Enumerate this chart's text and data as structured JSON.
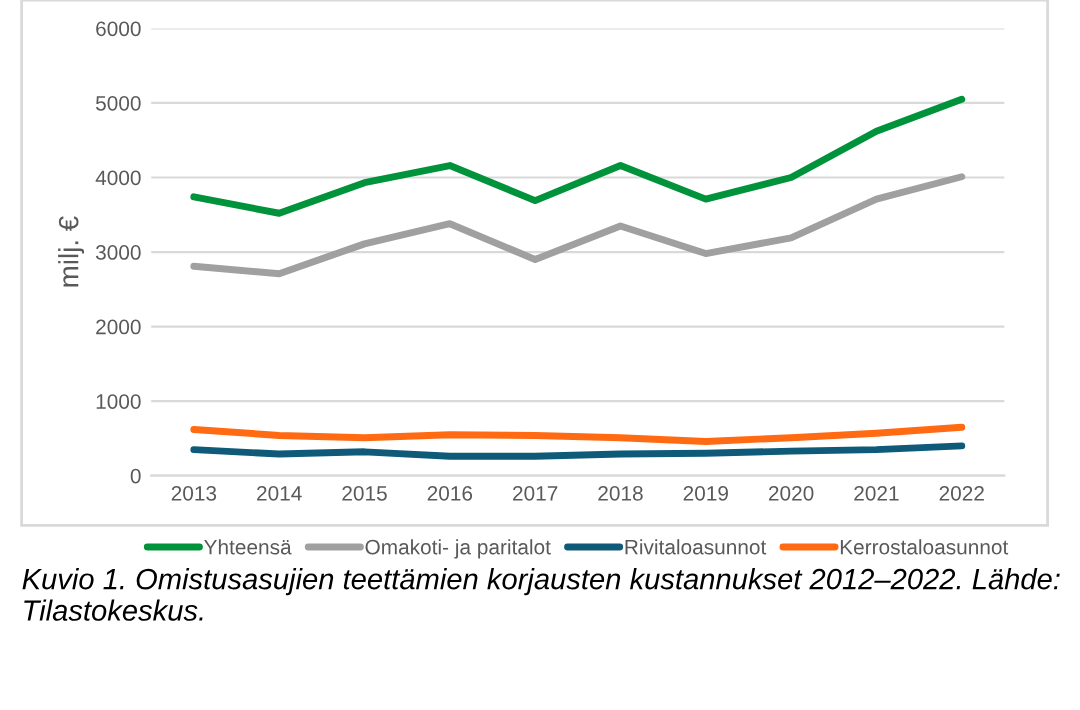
{
  "chart_data": {
    "type": "line",
    "ylabel": "milj. €",
    "categories": [
      "2013",
      "2014",
      "2015",
      "2016",
      "2017",
      "2018",
      "2019",
      "2020",
      "2021",
      "2022"
    ],
    "series": [
      {
        "name": "Yhteensä",
        "color": "#00933c",
        "values": [
          3740,
          3520,
          3930,
          4160,
          3690,
          4160,
          3710,
          4000,
          4620,
          5050
        ]
      },
      {
        "name": "Omakoti- ja paritalot",
        "color": "#a0a0a0",
        "values": [
          2810,
          2710,
          3110,
          3380,
          2900,
          3350,
          2980,
          3190,
          3710,
          4010
        ]
      },
      {
        "name": "Rivitaloasunnot",
        "color": "#0e5a78",
        "values": [
          350,
          290,
          320,
          260,
          260,
          290,
          300,
          330,
          350,
          400
        ]
      },
      {
        "name": "Kerrostaloasunnot",
        "color": "#ff6a13",
        "values": [
          620,
          540,
          510,
          550,
          540,
          510,
          460,
          510,
          570,
          650
        ]
      }
    ],
    "ylim": [
      0,
      6000
    ],
    "yticks": [
      0,
      1000,
      2000,
      3000,
      4000,
      5000,
      6000
    ],
    "grid": "y",
    "legend": "bottom",
    "annotations": [
      "Kuvio 1. Omistusasujien teettämien korjausten kustannukset 2012–2022. Lähde: Tilastokeskus."
    ]
  }
}
